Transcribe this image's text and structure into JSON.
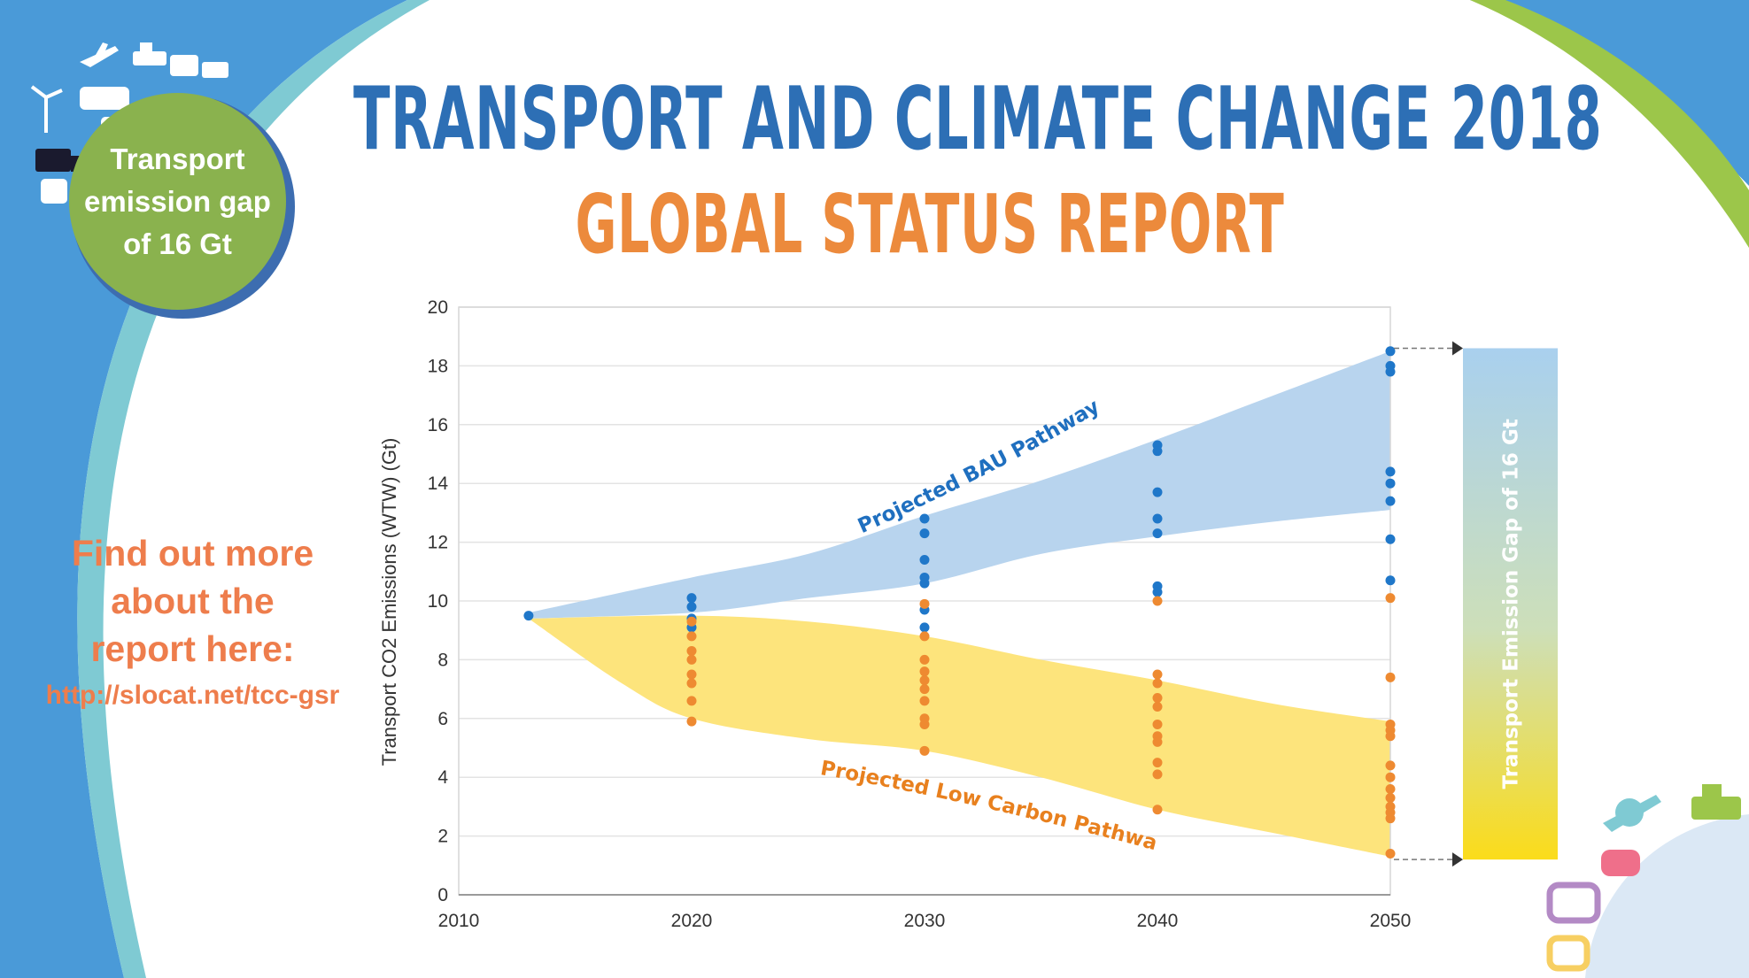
{
  "header": {
    "title": "TRANSPORT AND CLIMATE CHANGE 2018",
    "subtitle": "GLOBAL STATUS REPORT"
  },
  "badge": {
    "line1": "Transport",
    "line2": "emission gap",
    "line3": "of 16 Gt"
  },
  "cta": {
    "line1": "Find out more",
    "line2": "about the",
    "line3": "report here:",
    "url": "http://slocat.net/tcc-gsr"
  },
  "colors": {
    "blue_band": "#b8d4ee",
    "yellow_band": "#fde47c",
    "blue_dot": "#1f77c9",
    "orange_dot": "#ee8a31",
    "blue_label": "#1f6fbf",
    "orange_label": "#e8801e"
  },
  "chart_data": {
    "type": "scatter",
    "title": "",
    "xlabel": "",
    "ylabel": "Transport CO2 Emissions (WTW) (Gt)",
    "xlim": [
      2010,
      2050
    ],
    "ylim": [
      0,
      20
    ],
    "x_ticks": [
      "2010",
      "2020",
      "2030",
      "2040",
      "2050"
    ],
    "y_ticks": [
      "0",
      "2",
      "4",
      "6",
      "8",
      "10",
      "12",
      "14",
      "16",
      "18",
      "20"
    ],
    "bands": [
      {
        "name": "Projected BAU Pathway",
        "upper": [
          [
            2013,
            9.6
          ],
          [
            2020,
            10.8
          ],
          [
            2025,
            11.6
          ],
          [
            2030,
            12.9
          ],
          [
            2035,
            14.1
          ],
          [
            2040,
            15.5
          ],
          [
            2045,
            17.0
          ],
          [
            2050,
            18.5
          ]
        ],
        "lower": [
          [
            2013,
            9.4
          ],
          [
            2020,
            9.6
          ],
          [
            2025,
            10.1
          ],
          [
            2030,
            10.6
          ],
          [
            2035,
            11.6
          ],
          [
            2040,
            12.2
          ],
          [
            2045,
            12.7
          ],
          [
            2050,
            13.1
          ]
        ]
      },
      {
        "name": "Projected Low Carbon Pathway",
        "upper": [
          [
            2013,
            9.4
          ],
          [
            2020,
            9.5
          ],
          [
            2025,
            9.3
          ],
          [
            2030,
            8.8
          ],
          [
            2035,
            8.0
          ],
          [
            2040,
            7.3
          ],
          [
            2045,
            6.5
          ],
          [
            2050,
            5.9
          ]
        ],
        "lower": [
          [
            2013,
            9.4
          ],
          [
            2017,
            7.2
          ],
          [
            2020,
            6.0
          ],
          [
            2025,
            5.3
          ],
          [
            2030,
            4.9
          ],
          [
            2035,
            4.0
          ],
          [
            2040,
            2.9
          ],
          [
            2045,
            2.1
          ],
          [
            2050,
            1.3
          ]
        ]
      }
    ],
    "series": [
      {
        "name": "BAU scenarios",
        "color": "#1f77c9",
        "points": [
          [
            2013,
            9.5
          ],
          [
            2020,
            10.1
          ],
          [
            2020,
            9.8
          ],
          [
            2020,
            9.4
          ],
          [
            2020,
            9.1
          ],
          [
            2030,
            12.8
          ],
          [
            2030,
            12.3
          ],
          [
            2030,
            11.4
          ],
          [
            2030,
            10.8
          ],
          [
            2030,
            10.6
          ],
          [
            2030,
            9.7
          ],
          [
            2030,
            9.1
          ],
          [
            2040,
            15.3
          ],
          [
            2040,
            15.1
          ],
          [
            2040,
            13.7
          ],
          [
            2040,
            12.8
          ],
          [
            2040,
            12.3
          ],
          [
            2040,
            10.5
          ],
          [
            2040,
            10.3
          ],
          [
            2050,
            18.5
          ],
          [
            2050,
            18.0
          ],
          [
            2050,
            17.8
          ],
          [
            2050,
            14.4
          ],
          [
            2050,
            14.0
          ],
          [
            2050,
            13.4
          ],
          [
            2050,
            12.1
          ],
          [
            2050,
            10.7
          ]
        ]
      },
      {
        "name": "Low carbon scenarios",
        "color": "#ee8a31",
        "points": [
          [
            2020,
            9.3
          ],
          [
            2020,
            8.8
          ],
          [
            2020,
            8.3
          ],
          [
            2020,
            8.0
          ],
          [
            2020,
            7.5
          ],
          [
            2020,
            7.2
          ],
          [
            2020,
            6.6
          ],
          [
            2020,
            5.9
          ],
          [
            2030,
            9.9
          ],
          [
            2030,
            8.8
          ],
          [
            2030,
            8.0
          ],
          [
            2030,
            7.6
          ],
          [
            2030,
            7.3
          ],
          [
            2030,
            7.0
          ],
          [
            2030,
            6.6
          ],
          [
            2030,
            6.0
          ],
          [
            2030,
            5.8
          ],
          [
            2030,
            4.9
          ],
          [
            2040,
            10.0
          ],
          [
            2040,
            7.5
          ],
          [
            2040,
            7.2
          ],
          [
            2040,
            6.7
          ],
          [
            2040,
            6.4
          ],
          [
            2040,
            5.8
          ],
          [
            2040,
            5.4
          ],
          [
            2040,
            5.2
          ],
          [
            2040,
            4.5
          ],
          [
            2040,
            4.1
          ],
          [
            2040,
            2.9
          ],
          [
            2050,
            10.1
          ],
          [
            2050,
            7.4
          ],
          [
            2050,
            5.8
          ],
          [
            2050,
            5.6
          ],
          [
            2050,
            5.4
          ],
          [
            2050,
            4.4
          ],
          [
            2050,
            4.0
          ],
          [
            2050,
            3.6
          ],
          [
            2050,
            3.3
          ],
          [
            2050,
            3.0
          ],
          [
            2050,
            2.8
          ],
          [
            2050,
            2.6
          ],
          [
            2050,
            1.4
          ]
        ]
      }
    ],
    "annotations": {
      "bau_label": "Projected BAU Pathway",
      "low_label": "Projected Low Carbon Pathway",
      "gap_label": "Transport Emission Gap of 16 Gt",
      "gap_from": 18.6,
      "gap_to": 1.2
    }
  }
}
